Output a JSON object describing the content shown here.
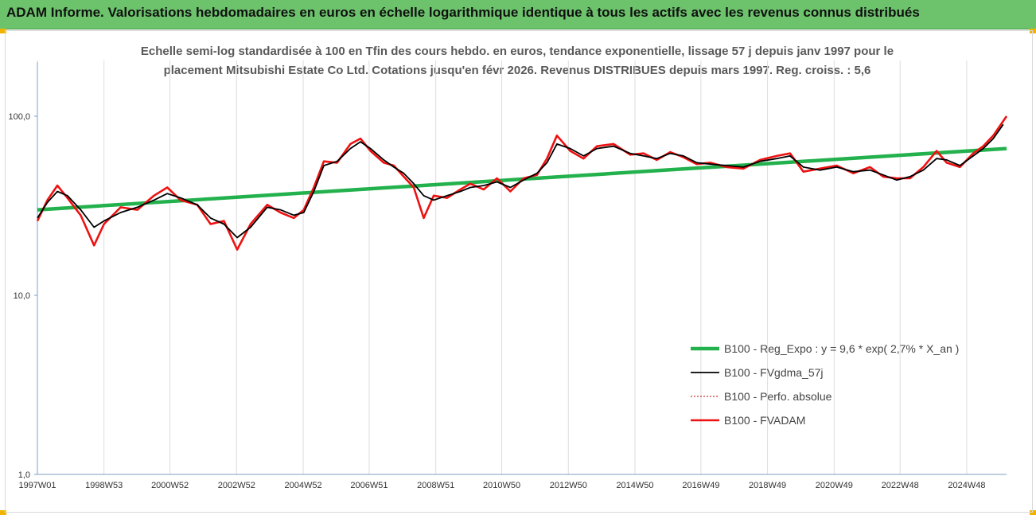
{
  "header": {
    "title": "ADAM Informe. Valorisations hebdomadaires en euros en échelle logarithmique identique à tous les actifs avec les revenus connus distribués"
  },
  "chart_data": {
    "type": "line",
    "title_line1": "Echelle semi-log standardisée à 100 en Tfin des cours hebdo. en euros, tendance exponentielle, lissage 57 j depuis janv 1997 pour le",
    "title_line2": "placement Mitsubishi Estate Co Ltd. Cotations jusqu'en févr 2026.  Revenus DISTRIBUES depuis mars 1997. Reg. croiss. : 5,6",
    "y_scale": "log",
    "ylim": [
      1,
      100
    ],
    "y_ticks": [
      "1,0",
      "10,0",
      "100,0"
    ],
    "x_ticks": [
      "1997W01",
      "1998W53",
      "2000W52",
      "2002W52",
      "2004W52",
      "2006W51",
      "2008W51",
      "2010W50",
      "2012W50",
      "2014W50",
      "2016W49",
      "2018W49",
      "2020W49",
      "2022W48",
      "2024W48"
    ],
    "xlim": [
      1997.0,
      2026.1
    ],
    "grid": "vertical",
    "legend_position": "bottom-right",
    "series": [
      {
        "name": "B100 - Reg_Expo : y = 9,6 * exp( 2,7% *  X_an )",
        "color": "#22b14c",
        "style": "solid",
        "x": [
          1997.0,
          2026.1
        ],
        "values": [
          30.0,
          66.0
        ]
      },
      {
        "name": "B100 - FVgdma_57j",
        "color": "#000000",
        "style": "solid",
        "x": [
          1997.0,
          1997.3,
          1997.6,
          1997.9,
          1998.3,
          1998.7,
          1999.0,
          1999.5,
          2000.0,
          2000.5,
          2000.9,
          2001.3,
          2001.8,
          2002.2,
          2002.6,
          2003.0,
          2003.4,
          2003.9,
          2004.3,
          2004.7,
          2005.0,
          2005.3,
          2005.6,
          2006.0,
          2006.4,
          2006.7,
          2007.0,
          2007.4,
          2007.7,
          2008.0,
          2008.3,
          2008.6,
          2008.9,
          2009.3,
          2009.7,
          2010.0,
          2010.4,
          2010.8,
          2011.2,
          2011.6,
          2012.0,
          2012.3,
          2012.6,
          2013.0,
          2013.4,
          2013.8,
          2014.3,
          2014.8,
          2015.2,
          2015.6,
          2016.0,
          2016.4,
          2016.8,
          2017.2,
          2017.7,
          2018.2,
          2018.7,
          2019.2,
          2019.6,
          2020.0,
          2020.5,
          2021.0,
          2021.5,
          2022.0,
          2022.4,
          2022.8,
          2023.2,
          2023.6,
          2024.0,
          2024.3,
          2024.7,
          2025.1,
          2025.4,
          2025.7,
          2026.0
        ],
        "values": [
          27,
          33,
          38,
          36,
          30,
          24,
          26,
          29,
          31,
          34,
          37,
          35,
          32,
          27,
          25,
          21,
          24,
          31,
          30,
          28,
          29,
          38,
          53,
          56,
          66,
          72,
          66,
          57,
          52,
          48,
          42,
          36,
          34,
          36,
          38,
          40,
          41,
          43,
          40,
          44,
          48,
          55,
          70,
          66,
          60,
          66,
          68,
          62,
          60,
          58,
          62,
          60,
          55,
          54,
          53,
          52,
          56,
          58,
          60,
          52,
          50,
          52,
          49,
          50,
          47,
          44,
          46,
          50,
          58,
          57,
          53,
          60,
          66,
          75,
          90
        ]
      },
      {
        "name": "B100 - Perfo. absolue",
        "color": "#c00000",
        "style": "dotted",
        "x": [
          1997.0,
          2026.1
        ],
        "values": [
          27,
          95
        ]
      },
      {
        "name": "B100 - FVADAM",
        "color": "#ee1111",
        "style": "solid",
        "x": [
          1997.0,
          1997.3,
          1997.6,
          1997.9,
          1998.3,
          1998.7,
          1999.0,
          1999.5,
          2000.0,
          2000.5,
          2000.9,
          2001.3,
          2001.8,
          2002.2,
          2002.6,
          2003.0,
          2003.4,
          2003.9,
          2004.3,
          2004.7,
          2005.0,
          2005.3,
          2005.6,
          2006.0,
          2006.4,
          2006.7,
          2007.0,
          2007.4,
          2007.7,
          2008.0,
          2008.3,
          2008.6,
          2008.9,
          2009.3,
          2009.7,
          2010.0,
          2010.4,
          2010.8,
          2011.2,
          2011.6,
          2012.0,
          2012.3,
          2012.6,
          2013.0,
          2013.4,
          2013.8,
          2014.3,
          2014.8,
          2015.2,
          2015.6,
          2016.0,
          2016.4,
          2016.8,
          2017.2,
          2017.7,
          2018.2,
          2018.7,
          2019.2,
          2019.6,
          2020.0,
          2020.5,
          2021.0,
          2021.5,
          2022.0,
          2022.4,
          2022.8,
          2023.2,
          2023.6,
          2024.0,
          2024.3,
          2024.7,
          2025.1,
          2025.4,
          2025.7,
          2026.1
        ],
        "values": [
          26,
          34,
          41,
          35,
          28,
          19,
          25,
          31,
          30,
          36,
          40,
          34,
          32,
          25,
          26,
          18,
          25,
          32,
          29,
          27,
          30,
          40,
          56,
          55,
          70,
          75,
          64,
          55,
          53,
          46,
          40,
          27,
          36,
          35,
          39,
          42,
          39,
          45,
          38,
          45,
          47,
          58,
          78,
          64,
          58,
          68,
          70,
          61,
          62,
          57,
          63,
          59,
          54,
          55,
          52,
          51,
          57,
          60,
          62,
          49,
          51,
          53,
          48,
          52,
          46,
          45,
          45,
          52,
          64,
          55,
          52,
          62,
          68,
          78,
          100
        ]
      }
    ]
  }
}
